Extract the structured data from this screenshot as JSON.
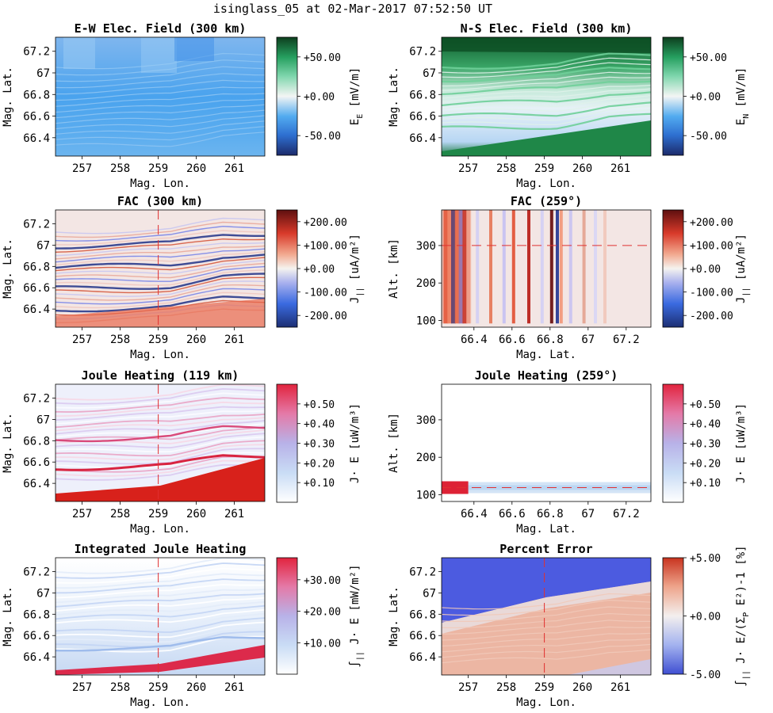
{
  "suptitle": "isinglass_05 at 02-Mar-2017 07:52:50 UT",
  "colors": {
    "refline": "#e03030",
    "balance_low": "#1d2f73",
    "balance_mid": "#f5f3ef",
    "balance_high": "#5e0f0f"
  },
  "chart_data": [
    {
      "type": "heatmap",
      "title": "E-W Elec. Field (300 km)",
      "xlabel": "Mag. Lon.",
      "ylabel": "Mag. Lat.",
      "xlim": [
        256.3,
        261.8
      ],
      "ylim": [
        66.23,
        67.33
      ],
      "xticks": [
        "257",
        "258",
        "259",
        "260",
        "261"
      ],
      "yticks": [
        "66.4",
        "66.6",
        "66.8",
        "67",
        "67.2"
      ],
      "colormap": "green-white-blue (diverging)",
      "colorbar": {
        "label": "E",
        "subscript": "E",
        "unit": "[mV/m]",
        "min": -75,
        "max": 75,
        "ticks": [
          "-50.00",
          "+0.00",
          "+50.00"
        ],
        "tick_values": [
          -50,
          0,
          50
        ]
      }
    },
    {
      "type": "heatmap",
      "title": "N-S Elec. Field (300 km)",
      "xlabel": "Mag. Lon.",
      "ylabel": "Mag. Lat.",
      "xlim": [
        256.3,
        261.8
      ],
      "ylim": [
        66.23,
        67.33
      ],
      "xticks": [
        "257",
        "258",
        "259",
        "260",
        "261"
      ],
      "yticks": [
        "66.4",
        "66.6",
        "66.8",
        "67",
        "67.2"
      ],
      "colormap": "green-white-blue (diverging)",
      "colorbar": {
        "label": "E",
        "subscript": "N",
        "unit": "[mV/m]",
        "min": -75,
        "max": 75,
        "ticks": [
          "-50.00",
          "+0.00",
          "+50.00"
        ],
        "tick_values": [
          -50,
          0,
          50
        ]
      }
    },
    {
      "type": "heatmap",
      "title": "FAC (300 km)",
      "xlabel": "Mag. Lon.",
      "ylabel": "Mag. Lat.",
      "xlim": [
        256.3,
        261.8
      ],
      "ylim": [
        66.23,
        67.33
      ],
      "xticks": [
        "257",
        "258",
        "259",
        "260",
        "261"
      ],
      "yticks": [
        "66.4",
        "66.6",
        "66.8",
        "67",
        "67.2"
      ],
      "colormap": "red-white-blue (diverging)",
      "reference_line": {
        "axis": "x",
        "value": 259
      },
      "colorbar": {
        "label": "J",
        "subscript": "||",
        "unit": "[uA/m²]",
        "min": -250,
        "max": 250,
        "ticks": [
          "-200.00",
          "-100.00",
          "+0.00",
          "+100.00",
          "+200.00"
        ],
        "tick_values": [
          -200,
          -100,
          0,
          100,
          200
        ]
      }
    },
    {
      "type": "heatmap",
      "title": "FAC (259°)",
      "xlabel": "Mag. Lat.",
      "ylabel": "Alt. [km]",
      "xlim": [
        66.23,
        67.33
      ],
      "ylim": [
        82,
        395
      ],
      "xticks": [
        "66.4",
        "66.6",
        "66.8",
        "67",
        "67.2"
      ],
      "yticks": [
        "100",
        "200",
        "300"
      ],
      "colormap": "red-white-blue (diverging)",
      "reference_line": {
        "axis": "y",
        "value": 300
      },
      "colorbar": {
        "label": "J",
        "subscript": "||",
        "unit": "[uA/m²]",
        "min": -250,
        "max": 250,
        "ticks": [
          "-200.00",
          "-100.00",
          "+0.00",
          "+100.00",
          "+200.00"
        ],
        "tick_values": [
          -200,
          -100,
          0,
          100,
          200
        ]
      }
    },
    {
      "type": "heatmap",
      "title": "Joule Heating (119 km)",
      "xlabel": "Mag. Lon.",
      "ylabel": "Mag. Lat.",
      "xlim": [
        256.3,
        261.8
      ],
      "ylim": [
        66.23,
        67.33
      ],
      "xticks": [
        "257",
        "258",
        "259",
        "260",
        "261"
      ],
      "yticks": [
        "66.4",
        "66.6",
        "66.8",
        "67",
        "67.2"
      ],
      "colormap": "white-blue-red (sequential)",
      "reference_line": {
        "axis": "x",
        "value": 259
      },
      "colorbar": {
        "label": "J· E",
        "subscript": "",
        "unit": "[uW/m³]",
        "min": 0,
        "max": 0.6,
        "ticks": [
          "+0.10",
          "+0.20",
          "+0.30",
          "+0.40",
          "+0.50"
        ],
        "tick_values": [
          0.1,
          0.2,
          0.3,
          0.4,
          0.5
        ]
      }
    },
    {
      "type": "heatmap",
      "title": "Joule Heating (259°)",
      "xlabel": "Mag. Lat.",
      "ylabel": "Alt. [km]",
      "xlim": [
        66.23,
        67.33
      ],
      "ylim": [
        82,
        395
      ],
      "xticks": [
        "66.4",
        "66.6",
        "66.8",
        "67",
        "67.2"
      ],
      "yticks": [
        "100",
        "200",
        "300"
      ],
      "colormap": "white-blue-red (sequential)",
      "reference_line": {
        "axis": "y",
        "value": 119
      },
      "colorbar": {
        "label": "J· E",
        "subscript": "",
        "unit": "[uW/m³]",
        "min": 0,
        "max": 0.6,
        "ticks": [
          "+0.10",
          "+0.20",
          "+0.30",
          "+0.40",
          "+0.50"
        ],
        "tick_values": [
          0.1,
          0.2,
          0.3,
          0.4,
          0.5
        ]
      }
    },
    {
      "type": "heatmap",
      "title": "Integrated Joule Heating",
      "xlabel": "Mag. Lon.",
      "ylabel": "Mag. Lat.",
      "xlim": [
        256.3,
        261.8
      ],
      "ylim": [
        66.23,
        67.33
      ],
      "xticks": [
        "257",
        "258",
        "259",
        "260",
        "261"
      ],
      "yticks": [
        "66.4",
        "66.6",
        "66.8",
        "67",
        "67.2"
      ],
      "colormap": "white-blue-red (sequential)",
      "reference_line": {
        "axis": "x",
        "value": 259
      },
      "colorbar": {
        "label": "∫ J· E",
        "subscript": "||",
        "unit": "[mW/m²]",
        "min": 0,
        "max": 37,
        "ticks": [
          "+10.00",
          "+20.00",
          "+30.00"
        ],
        "tick_values": [
          10,
          20,
          30
        ]
      }
    },
    {
      "type": "heatmap",
      "title": "Percent Error",
      "xlabel": "Mag. Lon.",
      "ylabel": "Mag. Lat.",
      "xlim": [
        256.3,
        261.8
      ],
      "ylim": [
        66.23,
        67.33
      ],
      "xticks": [
        "257",
        "258",
        "259",
        "260",
        "261"
      ],
      "yticks": [
        "66.4",
        "66.6",
        "66.8",
        "67",
        "67.2"
      ],
      "colormap": "blue-white-red (diverging)",
      "reference_line": {
        "axis": "x",
        "value": 259
      },
      "colorbar": {
        "label": "∫ J· E/(Σ E²)-1",
        "subscript": "||",
        "unit": "[%]",
        "min": -5,
        "max": 5,
        "ticks": [
          "-5.00",
          "+0.00",
          "+5.00"
        ],
        "tick_values": [
          -5,
          0,
          5
        ]
      }
    }
  ]
}
